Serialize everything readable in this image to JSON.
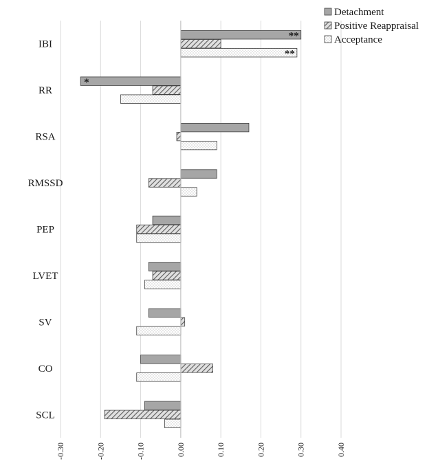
{
  "chart_data": {
    "type": "bar",
    "orientation": "horizontal",
    "categories": [
      "IBI",
      "RR",
      "RSA",
      "RMSSD",
      "PEP",
      "LVET",
      "SV",
      "CO",
      "SCL"
    ],
    "series": [
      {
        "name": "Detachment",
        "values": [
          0.3,
          -0.25,
          0.17,
          0.09,
          -0.07,
          -0.08,
          -0.08,
          -0.1,
          -0.09
        ],
        "fill": "#a6a6a6",
        "pattern": "solid",
        "annotations": [
          "**",
          "*",
          "",
          "",
          "",
          "",
          "",
          "",
          ""
        ]
      },
      {
        "name": "Positive Reappraisal",
        "values": [
          0.1,
          -0.07,
          -0.01,
          -0.08,
          -0.11,
          -0.07,
          0.01,
          0.08,
          -0.19
        ],
        "fill": "#d9d9d9",
        "pattern": "diagonal-hatch",
        "annotations": [
          "",
          "",
          "",
          "",
          "",
          "",
          "",
          "",
          ""
        ]
      },
      {
        "name": "Acceptance",
        "values": [
          0.29,
          -0.15,
          0.09,
          0.04,
          -0.11,
          -0.09,
          -0.11,
          -0.11,
          -0.04
        ],
        "fill": "#f2f2f2",
        "pattern": "dots",
        "annotations": [
          "**",
          "",
          "",
          "",
          "",
          "",
          "",
          "",
          ""
        ]
      }
    ],
    "xlim": [
      -0.3,
      0.4
    ],
    "xticks": [
      "-0.30",
      "-0.20",
      "-0.10",
      "0.00",
      "0.10",
      "0.20",
      "0.30",
      "0.40"
    ],
    "tick_values": [
      -0.3,
      -0.2,
      -0.1,
      0.0,
      0.1,
      0.2,
      0.3,
      0.4
    ],
    "grid": "vertical",
    "legend_position": "top-right",
    "title": "",
    "xlabel": "",
    "ylabel": ""
  }
}
